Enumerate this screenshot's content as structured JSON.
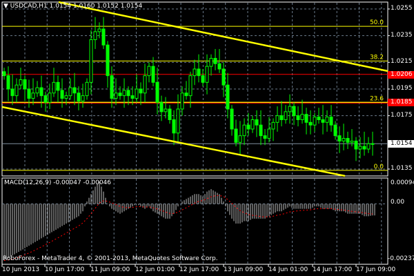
{
  "header": {
    "symbol": "USDCAD,H1",
    "ohlc": "1.0154 1.0160 1.0152 1.0154"
  },
  "indicator": {
    "title": "MACD(12,26,9) -0.00047 -0.00046",
    "scale_top": "0.00094",
    "scale_zero": "0.00",
    "scale_bottom": "-0.00237"
  },
  "footer": {
    "copyright": "RoboForex - MetaTrader 4, © 2001-2013, MetaQuotes Software Corp."
  },
  "price_axis": [
    "1.0255",
    "1.0235",
    "1.0215",
    "1.0195",
    "1.0175",
    "1.0135"
  ],
  "price_tags": [
    {
      "value": "1.0206",
      "bg": "#ff0000",
      "fg": "#ffffff"
    },
    {
      "value": "1.0185",
      "bg": "#ff0000",
      "fg": "#ffffff"
    },
    {
      "value": "1.0154",
      "bg": "#ffffff",
      "fg": "#000000"
    }
  ],
  "fib_levels": [
    {
      "label": "50.0",
      "price": 1.0242
    },
    {
      "label": "38.2",
      "price": 1.0216
    },
    {
      "label": "23.6",
      "price": 1.0185
    },
    {
      "label": "0.0",
      "price": 1.0134
    }
  ],
  "time_axis": [
    "10 Jun 2013",
    "10 Jun 17:00",
    "11 Jun 09:00",
    "12 Jun 01:00",
    "12 Jun 17:00",
    "13 Jun 09:00",
    "14 Jun 01:00",
    "14 Jun 17:00",
    "17 Jun 09:00"
  ],
  "colors": {
    "background": "#000000",
    "bull": "#00ff00",
    "bear": "#00ff00",
    "fib": "#ffff00",
    "channel": "#ffff00",
    "alert_line": "#ff0000",
    "grid": "#6b7b8c",
    "histogram": "#c0c0c0",
    "signal": "#ff0000"
  },
  "chart_data": {
    "type": "candlestick",
    "symbol": "USDCAD",
    "timeframe": "H1",
    "ylim": [
      1.013,
      1.026
    ],
    "closes": [
      1.0205,
      1.0195,
      1.019,
      1.0198,
      1.0202,
      1.0195,
      1.0188,
      1.0192,
      1.0196,
      1.019,
      1.0185,
      1.0192,
      1.02,
      1.0194,
      1.0188,
      1.019,
      1.0196,
      1.0192,
      1.0186,
      1.019,
      1.02,
      1.0232,
      1.0238,
      1.024,
      1.0228,
      1.0205,
      1.0188,
      1.0192,
      1.019,
      1.0194,
      1.019,
      1.0188,
      1.0195,
      1.0192,
      1.0205,
      1.0212,
      1.02,
      1.0185,
      1.0178,
      1.018,
      1.0172,
      1.0162,
      1.018,
      1.0192,
      1.019,
      1.0205,
      1.021,
      1.0205,
      1.02,
      1.0212,
      1.0218,
      1.0214,
      1.021,
      1.0198,
      1.018,
      1.0165,
      1.0155,
      1.016,
      1.0168,
      1.0165,
      1.0172,
      1.0168,
      1.016,
      1.0158,
      1.0165,
      1.017,
      1.0175,
      1.0172,
      1.0178,
      1.0182,
      1.0175,
      1.0172,
      1.0176,
      1.017,
      1.0168,
      1.0174,
      1.0172,
      1.017,
      1.0174,
      1.0168,
      1.016,
      1.0156,
      1.0158,
      1.0155,
      1.0156,
      1.015,
      1.0152,
      1.015,
      1.0154,
      1.0154
    ],
    "macd": [
      -0.0023,
      -0.0022,
      -0.0021,
      -0.002,
      -0.0019,
      -0.0018,
      -0.0017,
      -0.0016,
      -0.0015,
      -0.0014,
      -0.0013,
      -0.0012,
      -0.0011,
      -0.001,
      -0.0009,
      -0.0008,
      -0.0007,
      -0.0006,
      -0.0005,
      -0.0003,
      0.0001,
      0.0004,
      0.0007,
      0.0009,
      0.0005,
      0.0,
      -0.0002,
      -0.0003,
      -0.0004,
      -0.0003,
      -0.0002,
      -0.0001,
      0.0,
      -0.0001,
      -0.0002,
      -0.0001,
      -0.0003,
      -0.0004,
      -0.0005,
      -0.0006,
      -0.0006,
      -0.0004,
      -0.0001,
      0.0001,
      0.0002,
      0.0003,
      0.0004,
      0.0004,
      0.0003,
      0.0005,
      0.0006,
      0.0005,
      0.0004,
      0.0001,
      -0.0003,
      -0.0006,
      -0.0008,
      -0.0008,
      -0.0007,
      -0.0007,
      -0.0006,
      -0.0006,
      -0.0006,
      -0.0006,
      -0.0005,
      -0.0004,
      -0.0003,
      -0.0003,
      -0.0002,
      -0.0001,
      -0.0002,
      -0.0002,
      -0.0002,
      -0.0002,
      -0.0002,
      -0.0001,
      -0.0001,
      -0.0002,
      -0.0002,
      -0.0002,
      -0.0003,
      -0.0003,
      -0.0003,
      -0.0004,
      -0.0004,
      -0.0004,
      -0.0004,
      -0.0005,
      -0.0005,
      -0.00047
    ],
    "macd_ylim": [
      -0.00237,
      0.00094
    ]
  }
}
